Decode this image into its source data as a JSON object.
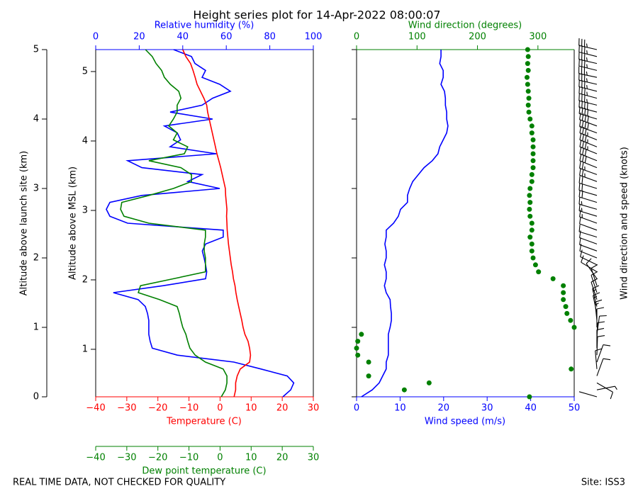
{
  "chart_data": {
    "type": "profile",
    "title": "Height series plot for 14-Apr-2022 08:00:07",
    "ylabel": "Altitude above launch site (km)",
    "y2label": "Altitude above MSL (km)",
    "temperature_label": "Temperature (C)",
    "dew_point_label": "Dew point temperature (C)",
    "relative_humidity_label": "Relative humidity (%)",
    "wind_speed_label": "Wind speed (m/s)",
    "wind_direction_label": "Wind direction (degrees)",
    "barb_label": "Wind direction and speed (knots)",
    "footer_left": "REAL TIME DATA, NOT CHECKED FOR QUALITY",
    "footer_right": "Site: ISS3",
    "ylim": [
      0,
      5
    ],
    "yticks": [
      0,
      1,
      2,
      3,
      4,
      5
    ],
    "y2lim": [
      0.316,
      5.316
    ],
    "y2ticks": [
      1,
      2,
      3,
      4,
      5
    ],
    "temperature_xlim": [
      -40,
      30
    ],
    "temperature_xticks": [
      {
        "value": -40,
        "label": "−40"
      },
      {
        "value": -30,
        "label": "−30"
      },
      {
        "value": -20,
        "label": "−20"
      },
      {
        "value": -10,
        "label": "−10"
      },
      0,
      10,
      20,
      30
    ],
    "dew_point_xlim": [
      -40,
      30
    ],
    "dew_point_xticks": [
      {
        "value": -40,
        "label": "−40"
      },
      {
        "value": -30,
        "label": "−30"
      },
      {
        "value": -20,
        "label": "−20"
      },
      {
        "value": -10,
        "label": "−10"
      },
      0,
      10,
      20,
      30
    ],
    "relative_humidity_xlim": [
      0,
      100
    ],
    "relative_humidity_xticks": [
      0,
      20,
      40,
      60,
      80,
      100
    ],
    "wind_speed_xlim": [
      0,
      50
    ],
    "wind_speed_xticks": [
      0,
      10,
      20,
      30,
      40,
      50
    ],
    "wind_direction_xlim": [
      0,
      360
    ],
    "wind_direction_xticks": [
      0,
      100,
      200,
      300
    ],
    "temperature_color": "#ff0000",
    "dew_point_color": "#008000",
    "relative_humidity_color": "#0000ff",
    "wind_speed_color": "#0000ff",
    "wind_direction_color": "#008000",
    "altitude": [
      0,
      0.1,
      0.2,
      0.3,
      0.4,
      0.5,
      0.6,
      0.7,
      0.8,
      0.9,
      1.0,
      1.1,
      1.2,
      1.3,
      1.4,
      1.5,
      1.6,
      1.7,
      1.8,
      1.9,
      2.0,
      2.1,
      2.2,
      2.3,
      2.4,
      2.5,
      2.6,
      2.7,
      2.8,
      2.9,
      3.0,
      3.1,
      3.2,
      3.3,
      3.4,
      3.5,
      3.6,
      3.7,
      3.8,
      3.9,
      4.0,
      4.1,
      4.2,
      4.3,
      4.4,
      4.5,
      4.6,
      4.7,
      4.8,
      4.9,
      5.0
    ],
    "temperature": [
      4.5,
      5,
      5,
      5.5,
      6.5,
      9.5,
      9.8,
      9.5,
      9,
      8,
      7.4,
      7,
      6.5,
      6,
      5.5,
      5.1,
      4.8,
      4.3,
      4,
      3.6,
      3.3,
      3,
      2.7,
      2.5,
      2.3,
      2.2,
      2.1,
      2.2,
      2,
      1.8,
      1.7,
      1.2,
      0.7,
      0.2,
      -0.4,
      -1,
      -1.5,
      -2,
      -2.5,
      -3,
      -3.5,
      -4,
      -4.3,
      -5.2,
      -6.3,
      -7.4,
      -8,
      -8.7,
      -9.5,
      -11,
      -12
    ],
    "dew_point": [
      0.4,
      1.7,
      2.2,
      2.2,
      1,
      -4.7,
      -8,
      -9.7,
      -10.4,
      -11,
      -12,
      -12.6,
      -13.1,
      -13.8,
      -19.5,
      -26.3,
      -25.6,
      -15,
      -4.7,
      -4.7,
      -4.7,
      -5.1,
      -5.1,
      -4.7,
      -4.7,
      -22.9,
      -30.9,
      -32,
      -31.6,
      -22.9,
      -15,
      -9.2,
      -9.2,
      -12.6,
      -22.9,
      -11.5,
      -10.4,
      -15,
      -13.8,
      -16.5,
      -15,
      -13.8,
      -13.8,
      -12.6,
      -13.3,
      -16,
      -17.9,
      -18.8,
      -20.6,
      -21.8,
      -24
    ],
    "relative_humidity": [
      86,
      89.6,
      91,
      88,
      76,
      63.5,
      37.5,
      26,
      25,
      24.4,
      24.4,
      24.4,
      23.8,
      22.8,
      19.5,
      8.1,
      31,
      50.5,
      51,
      50.5,
      49.8,
      49,
      50.5,
      58.6,
      58.6,
      14.7,
      6.5,
      4.9,
      6.5,
      21.2,
      57,
      42.3,
      48.9,
      21.2,
      14.7,
      55.4,
      34.2,
      39,
      37.5,
      31.6,
      53.7,
      34.2,
      48.9,
      53.7,
      61.9,
      57,
      48.9,
      50.5,
      45.6,
      44,
      35.8
    ],
    "wind_speed": [
      1.1,
      3.6,
      5.2,
      6,
      6.8,
      6.8,
      7.3,
      7.3,
      7.3,
      7.3,
      7.7,
      8,
      8,
      7.8,
      7.7,
      6.8,
      6.4,
      6.8,
      6.8,
      6.4,
      6.8,
      6.8,
      6.5,
      6.8,
      6.8,
      8.5,
      9.6,
      10.1,
      11.7,
      11.7,
      12.2,
      12.9,
      14.2,
      15.5,
      17.4,
      18.7,
      19.1,
      19.9,
      20.7,
      21,
      20.7,
      20.7,
      20.4,
      20.4,
      20.2,
      19.4,
      19.9,
      19.9,
      19.1,
      19.4,
      19.4
    ],
    "wind_direction": [
      286,
      79,
      120,
      20,
      355,
      20,
      2,
      0,
      2,
      8,
      360,
      354,
      348,
      346,
      342,
      342,
      342,
      325,
      301,
      296,
      292,
      290,
      290,
      287,
      290,
      290,
      287,
      286,
      287,
      286,
      287,
      290,
      290,
      292,
      292,
      292,
      292,
      292,
      290,
      290,
      287,
      285,
      284,
      285,
      284,
      283,
      282,
      284,
      283,
      284,
      283
    ]
  }
}
